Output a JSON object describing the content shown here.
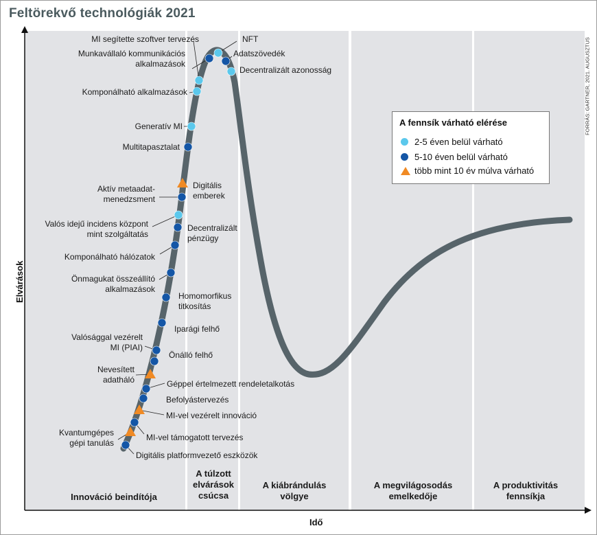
{
  "title": "Feltörekvő technológiák 2021",
  "source": "FORRÁS: GARTNER, 2021. AUGUSZTUS",
  "axes": {
    "y_label": "Elvárások",
    "x_label": "Idő"
  },
  "phases": [
    {
      "name": "Innováció beindítója"
    },
    {
      "name": "A túlzott elvárások csúcsa"
    },
    {
      "name": "A kiábrándulás völgye"
    },
    {
      "name": "A megvilágosodás emelkedője"
    },
    {
      "name": "A produktivitás fennsíkja"
    }
  ],
  "legend": {
    "title": "A fennsík várható elérése",
    "items": [
      {
        "label": "2-5 éven belül várható",
        "color": "#5bc8ec",
        "shape": "circle"
      },
      {
        "label": "5-10 éven belül várható",
        "color": "#1456a6",
        "shape": "circle"
      },
      {
        "label": "több mint 10 év múlva várható",
        "color": "#f08a24",
        "shape": "triangle"
      }
    ]
  },
  "colors": {
    "curve": "#57646a",
    "phase_bg": "#e2e3e6",
    "cat_short": "#5bc8ec",
    "cat_mid": "#1456a6",
    "cat_long": "#f08a24"
  },
  "technologies": [
    {
      "name": "MI segítette szoftver tervezés",
      "category": "short"
    },
    {
      "name": "NFT",
      "category": "short"
    },
    {
      "name": "Munkavállaló kommunikációs alkalmazások",
      "category": "mid"
    },
    {
      "name": "Adatszövedék",
      "category": "mid"
    },
    {
      "name": "Decentralizált azonosság",
      "category": "short"
    },
    {
      "name": "Komponálható alkalmazások",
      "category": "short"
    },
    {
      "name": "Generatív MI",
      "category": "short"
    },
    {
      "name": "Multitapasztalat",
      "category": "mid"
    },
    {
      "name": "Digitális emberek",
      "category": "long"
    },
    {
      "name": "Aktív metaadat-menedzsment",
      "category": "mid"
    },
    {
      "name": "Valós idejű incidens központ mint szolgáltatás",
      "category": "short"
    },
    {
      "name": "Decentralizált pénzügy",
      "category": "mid"
    },
    {
      "name": "Komponálható hálózatok",
      "category": "mid"
    },
    {
      "name": "Önmagukat összeállító alkalmazások",
      "category": "mid"
    },
    {
      "name": "Homomorfikus titkosítás",
      "category": "mid"
    },
    {
      "name": "Iparági felhő",
      "category": "mid"
    },
    {
      "name": "Valósággal vezérelt MI (PIAI)",
      "category": "mid"
    },
    {
      "name": "Önálló felhő",
      "category": "mid"
    },
    {
      "name": "Nevesített adatháló",
      "category": "long"
    },
    {
      "name": "Géppel értelmezett rendeletalkotás",
      "category": "mid"
    },
    {
      "name": "Befolyástervezés",
      "category": "mid"
    },
    {
      "name": "MI-vel vezérelt innováció",
      "category": "long"
    },
    {
      "name": "Kvantumgépes gépi tanulás",
      "category": "long"
    },
    {
      "name": "MI-vel támogatott tervezés",
      "category": "mid"
    },
    {
      "name": "Digitális platformvezető eszközök",
      "category": "mid"
    }
  ]
}
